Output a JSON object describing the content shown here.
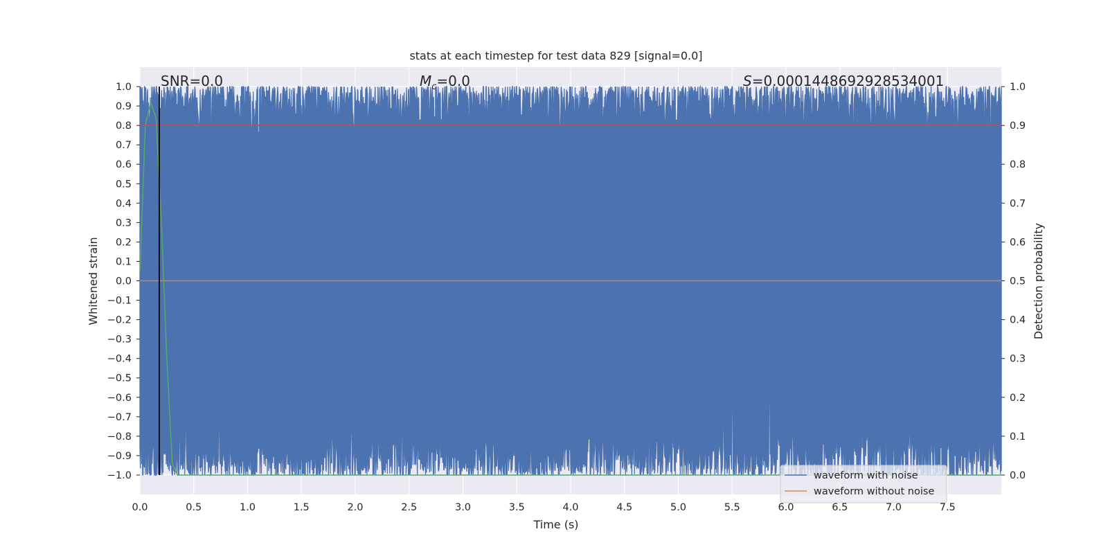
{
  "chart_data": {
    "type": "line",
    "title": "stats at each timestep for test data 829 [signal=0.0]",
    "xlabel": "Time (s)",
    "ylabel": "Whitened strain",
    "y2label": "Detection probability",
    "xlim": [
      0.0,
      8.0
    ],
    "ylim": [
      -1.1,
      1.1
    ],
    "y2lim": [
      -0.05,
      1.05
    ],
    "xticks": [
      "0.0",
      "0.5",
      "1.0",
      "1.5",
      "2.0",
      "2.5",
      "3.0",
      "3.5",
      "4.0",
      "4.5",
      "5.0",
      "5.5",
      "6.0",
      "6.5",
      "7.0",
      "7.5"
    ],
    "yticks": [
      "1.0",
      "0.9",
      "0.8",
      "0.7",
      "0.6",
      "0.5",
      "0.4",
      "0.3",
      "0.2",
      "0.1",
      "0.0",
      "−0.1",
      "−0.2",
      "−0.3",
      "−0.4",
      "−0.5",
      "−0.6",
      "−0.7",
      "−0.8",
      "−0.9",
      "−1.0"
    ],
    "y2ticks": [
      "1.0",
      "0.9",
      "0.8",
      "0.7",
      "0.6",
      "0.5",
      "0.4",
      "0.3",
      "0.2",
      "0.1",
      "0.0"
    ],
    "grid": true,
    "annotations": {
      "snr": "SNR=0.0",
      "mc_symbol": "M",
      "mc_sub": "c",
      "mc_value": "=0.0",
      "s_symbol": "S",
      "s_value": "=0.0001448692928534001"
    },
    "vertical_line_x": 0.18,
    "series": [
      {
        "name": "waveform with noise",
        "color": "#4c72b0",
        "axis": "left",
        "description_range": [
          -1.0,
          1.0
        ]
      },
      {
        "name": "waveform without noise",
        "color": "#dd8452",
        "axis": "left",
        "x": [
          0.0,
          8.0
        ],
        "y": [
          0.0,
          0.0
        ]
      },
      {
        "color": "#55a868",
        "axis": "right",
        "x": [
          0.0,
          0.05,
          0.1,
          0.15,
          0.2,
          0.25,
          0.3,
          0.35,
          0.4,
          8.0
        ],
        "y": [
          0.52,
          0.9,
          0.96,
          0.92,
          0.65,
          0.3,
          0.03,
          0.0,
          0.0,
          0.0
        ]
      },
      {
        "color": "#c44e52",
        "axis": "right",
        "x": [
          0.0,
          8.0
        ],
        "y": [
          0.9,
          0.9
        ]
      }
    ],
    "legend_placement": "lower-right"
  },
  "colors": {
    "plot_bg": "#eaeaf2",
    "grid": "#ffffff",
    "text": "#262626"
  }
}
